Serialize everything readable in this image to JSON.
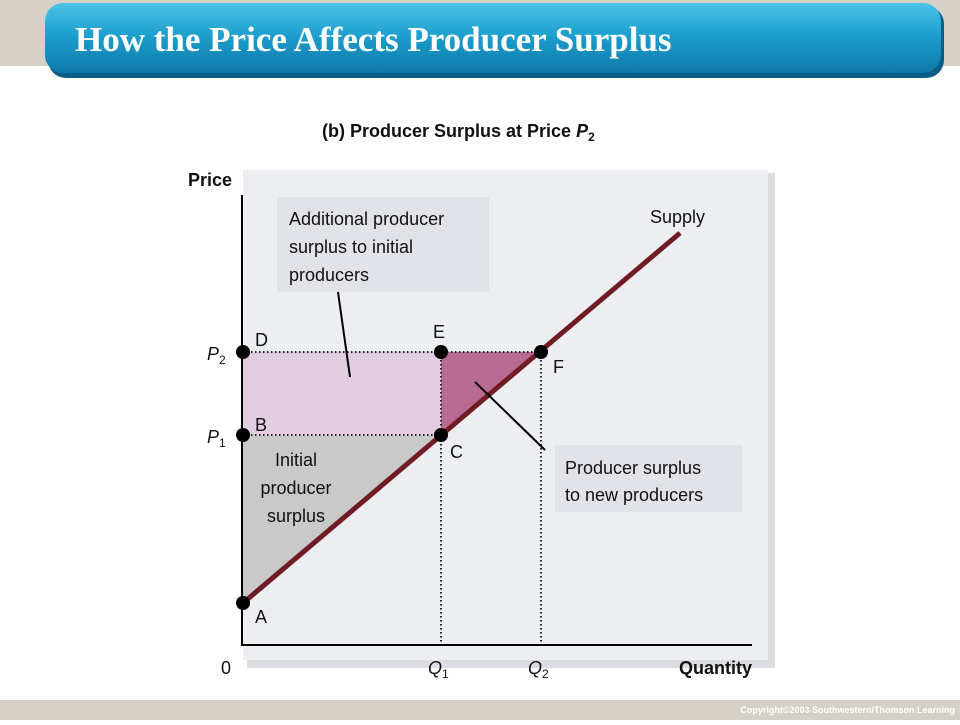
{
  "header": {
    "title": "How the Price Affects Producer Surplus"
  },
  "diagram": {
    "subtitle": {
      "text": "(b) Producer Surplus at Price ",
      "var": "P",
      "sub": "2"
    },
    "y_axis_label": "Price",
    "x_axis_label": "Quantity",
    "origin_label": "0",
    "curve_label": "Supply",
    "price_labels": [
      {
        "var": "P",
        "sub": "2"
      },
      {
        "var": "P",
        "sub": "1"
      }
    ],
    "quantity_labels": [
      {
        "var": "Q",
        "sub": "1"
      },
      {
        "var": "Q",
        "sub": "2"
      }
    ],
    "points": [
      "D",
      "E",
      "F",
      "B",
      "C",
      "A"
    ],
    "annotations": {
      "additional": [
        "Additional producer",
        "surplus to initial",
        "producers"
      ],
      "initial": [
        "Initial",
        "producer",
        "surplus"
      ],
      "new": [
        "Producer surplus",
        "to new producers"
      ]
    }
  },
  "footer": {
    "copyright": "Copyright©2003  Southwestern/Thomson Learning"
  }
}
